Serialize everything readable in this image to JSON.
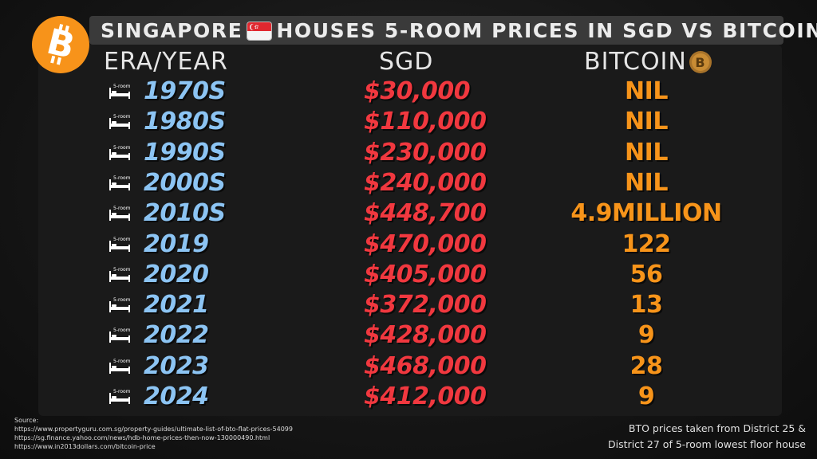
{
  "title": {
    "text_before_flag": "SINGAPORE",
    "text_after_flag": "HOUSES 5-ROOM PRICES IN SGD VS BITCOIN",
    "flag_icon": "singapore-flag-icon",
    "logo_icon": "bitcoin-logo-icon"
  },
  "headers": {
    "era": "ERA/YEAR",
    "sgd": "SGD",
    "bitcoin": "BITCOIN",
    "bitcoin_icon": "bitcoin-coin-icon"
  },
  "bed_icon_label": "5-room",
  "rows": [
    {
      "era": "1970S",
      "sgd": "$30,000",
      "btc": "NIL"
    },
    {
      "era": "1980S",
      "sgd": "$110,000",
      "btc": "NIL"
    },
    {
      "era": "1990S",
      "sgd": "$230,000",
      "btc": "NIL"
    },
    {
      "era": "2000S",
      "sgd": "$240,000",
      "btc": "NIL"
    },
    {
      "era": "2010S",
      "sgd": "$448,700",
      "btc": "4.9MILLION"
    },
    {
      "era": "2019",
      "sgd": "$470,000",
      "btc": "122"
    },
    {
      "era": "2020",
      "sgd": "$405,000",
      "btc": "56"
    },
    {
      "era": "2021",
      "sgd": "$372,000",
      "btc": "13"
    },
    {
      "era": "2022",
      "sgd": "$428,000",
      "btc": "9"
    },
    {
      "era": "2023",
      "sgd": "$468,000",
      "btc": "28"
    },
    {
      "era": "2024",
      "sgd": "$412,000",
      "btc": "9"
    }
  ],
  "source": {
    "label": "Source:",
    "links": [
      "https://www.propertyguru.com.sg/property-guides/ultimate-list-of-bto-flat-prices-54099",
      "https://sg.finance.yahoo.com/news/hdb-home-prices-then-now-130000490.html",
      "https://www.in2013dollars.com/bitcoin-price"
    ]
  },
  "note": {
    "line1": "BTO prices taken from District 25 &",
    "line2": "District 27 of 5-room lowest floor house"
  },
  "colors": {
    "era": "#8cc4f3",
    "sgd": "#f1383f",
    "btc": "#f7941a",
    "bitcoin_orange": "#f7931a"
  }
}
